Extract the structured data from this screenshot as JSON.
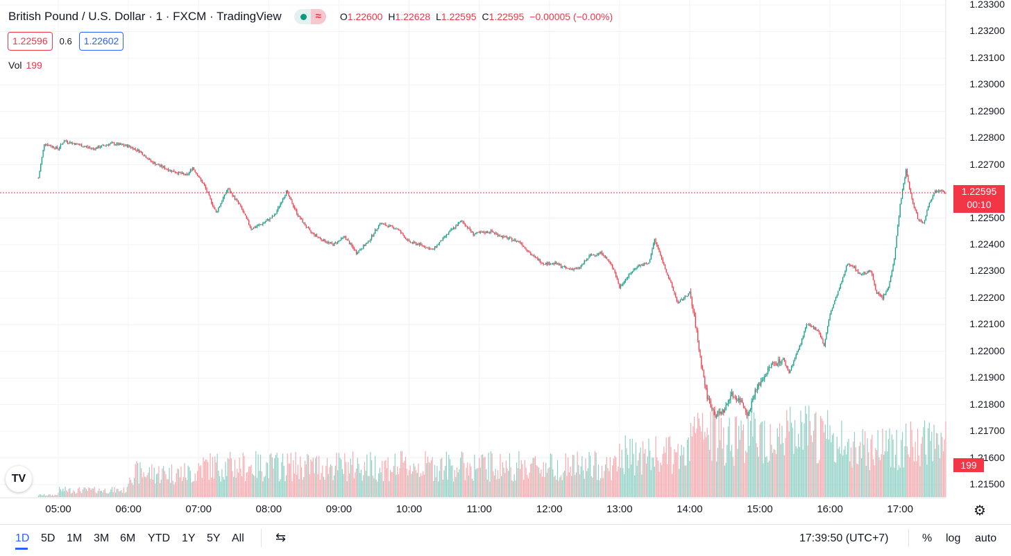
{
  "header": {
    "symbol": "British Pound / U.S. Dollar · 1 · FXCM · TradingView",
    "ohlc": {
      "o_label": "O",
      "o": "1.22600",
      "h_label": "H",
      "h": "1.22628",
      "l_label": "L",
      "l": "1.22595",
      "c_label": "C",
      "c": "1.22595",
      "change": "−0.00005 (−0.00%)"
    },
    "status_icon": "market-open-dot",
    "delay_icon": "wave-icon"
  },
  "trade": {
    "sell": "1.22596",
    "spread": "0.6",
    "buy": "1.22602"
  },
  "volume_legend": {
    "label": "Vol",
    "value": "199"
  },
  "price_axis": {
    "labels": [
      "1.23300",
      "1.23200",
      "1.23100",
      "1.23000",
      "1.22900",
      "1.22800",
      "1.22700",
      "1.22600",
      "1.22500",
      "1.22400",
      "1.22300",
      "1.22200",
      "1.22100",
      "1.22000",
      "1.21900",
      "1.21800",
      "1.21700",
      "1.21600",
      "1.21500"
    ]
  },
  "last_price_badge": {
    "price": "1.22595",
    "countdown": "00:10"
  },
  "volume_badge": "199",
  "time_axis": {
    "labels": [
      "05:00",
      "06:00",
      "07:00",
      "08:00",
      "09:00",
      "10:00",
      "11:00",
      "12:00",
      "13:00",
      "14:00",
      "15:00",
      "16:00",
      "17:00"
    ]
  },
  "bottom_bar": {
    "ranges": [
      "1D",
      "5D",
      "1M",
      "3M",
      "6M",
      "YTD",
      "1Y",
      "5Y",
      "All"
    ],
    "active_range": "1D",
    "clock": "17:39:50 (UTC+7)",
    "percent": "%",
    "log": "log",
    "auto": "auto"
  },
  "colors": {
    "up": "#089981",
    "down": "#f23645",
    "vol_up": "#8fd0c4",
    "vol_down": "#f7a9ae",
    "grid": "#f0f3fa"
  },
  "chart_data": {
    "type": "candlestick",
    "title": "British Pound / U.S. Dollar · 1 · FXCM · TradingView",
    "x_range": [
      "04:43",
      "17:39"
    ],
    "y_range": [
      1.2145,
      1.233
    ],
    "last": 1.22595,
    "anchors": [
      [
        "04:43",
        1.2265
      ],
      [
        "04:48",
        1.2278
      ],
      [
        "05:00",
        1.2276
      ],
      [
        "05:05",
        1.2279
      ],
      [
        "05:30",
        1.2276
      ],
      [
        "05:45",
        1.2278
      ],
      [
        "06:00",
        1.2277
      ],
      [
        "06:10",
        1.2275
      ],
      [
        "06:20",
        1.2271
      ],
      [
        "06:35",
        1.2268
      ],
      [
        "06:50",
        1.2266
      ],
      [
        "06:55",
        1.2269
      ],
      [
        "07:05",
        1.2262
      ],
      [
        "07:15",
        1.2252
      ],
      [
        "07:25",
        1.2261
      ],
      [
        "07:35",
        1.2255
      ],
      [
        "07:45",
        1.2246
      ],
      [
        "07:55",
        1.2248
      ],
      [
        "08:05",
        1.2251
      ],
      [
        "08:15",
        1.226
      ],
      [
        "08:25",
        1.2251
      ],
      [
        "08:35",
        1.2245
      ],
      [
        "08:45",
        1.2242
      ],
      [
        "08:55",
        1.224
      ],
      [
        "09:05",
        1.2243
      ],
      [
        "09:15",
        1.2237
      ],
      [
        "09:25",
        1.2241
      ],
      [
        "09:35",
        1.2248
      ],
      [
        "09:50",
        1.2246
      ],
      [
        "10:00",
        1.2241
      ],
      [
        "10:10",
        1.224
      ],
      [
        "10:20",
        1.2238
      ],
      [
        "10:35",
        1.2245
      ],
      [
        "10:45",
        1.2249
      ],
      [
        "10:55",
        1.2244
      ],
      [
        "11:10",
        1.2245
      ],
      [
        "11:20",
        1.2243
      ],
      [
        "11:35",
        1.2241
      ],
      [
        "11:45",
        1.2236
      ],
      [
        "11:55",
        1.2233
      ],
      [
        "12:05",
        1.2233
      ],
      [
        "12:15",
        1.2231
      ],
      [
        "12:25",
        1.2231
      ],
      [
        "12:35",
        1.2236
      ],
      [
        "12:45",
        1.2237
      ],
      [
        "12:55",
        1.2231
      ],
      [
        "13:00",
        1.2224
      ],
      [
        "13:05",
        1.2227
      ],
      [
        "13:15",
        1.2232
      ],
      [
        "13:25",
        1.2233
      ],
      [
        "13:30",
        1.2242
      ],
      [
        "13:40",
        1.223
      ],
      [
        "13:50",
        1.2218
      ],
      [
        "14:00",
        1.2222
      ],
      [
        "14:05",
        1.221
      ],
      [
        "14:10",
        1.2195
      ],
      [
        "14:15",
        1.2183
      ],
      [
        "14:22",
        1.2176
      ],
      [
        "14:30",
        1.2178
      ],
      [
        "14:35",
        1.2184
      ],
      [
        "14:45",
        1.2181
      ],
      [
        "14:50",
        1.2176
      ],
      [
        "14:55",
        1.2184
      ],
      [
        "15:00",
        1.2188
      ],
      [
        "15:10",
        1.2195
      ],
      [
        "15:20",
        1.2197
      ],
      [
        "15:25",
        1.2192
      ],
      [
        "15:35",
        1.2203
      ],
      [
        "15:40",
        1.221
      ],
      [
        "15:50",
        1.2208
      ],
      [
        "15:55",
        1.2202
      ],
      [
        "16:00",
        1.2214
      ],
      [
        "16:05",
        1.222
      ],
      [
        "16:10",
        1.2226
      ],
      [
        "16:15",
        1.2233
      ],
      [
        "16:20",
        1.2232
      ],
      [
        "16:25",
        1.2229
      ],
      [
        "16:35",
        1.223
      ],
      [
        "16:40",
        1.2222
      ],
      [
        "16:45",
        1.222
      ],
      [
        "16:50",
        1.2224
      ],
      [
        "16:55",
        1.2235
      ],
      [
        "17:00",
        1.2255
      ],
      [
        "17:05",
        1.2268
      ],
      [
        "17:10",
        1.2257
      ],
      [
        "17:15",
        1.225
      ],
      [
        "17:20",
        1.2248
      ],
      [
        "17:25",
        1.2256
      ],
      [
        "17:30",
        1.226
      ],
      [
        "17:35",
        1.2261
      ],
      [
        "17:39",
        1.22595
      ]
    ],
    "volume_axis_max": 320
  }
}
